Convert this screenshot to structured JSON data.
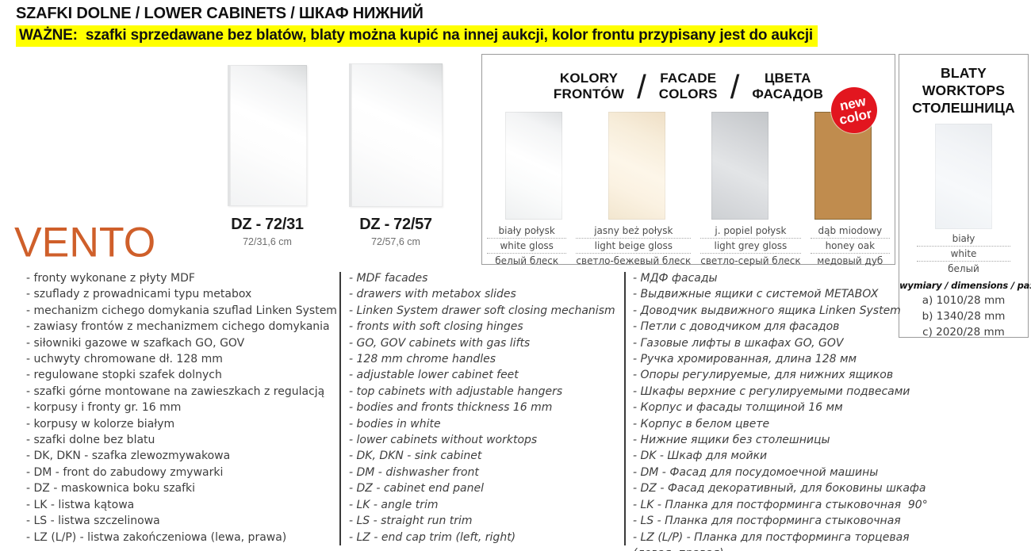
{
  "header": {
    "title": "SZAFKI DOLNE / LOWER CABINETS / ШКАФ НИЖНИЙ",
    "note": "WAŻNE:  szafki sprzedawane bez blatów, blaty można kupić na innej aukcji, kolor frontu przypisany jest do aukcji",
    "highlight_color": "#ffff00"
  },
  "brand": {
    "logo": "VENTO",
    "logo_color": "#cf5f2a"
  },
  "products": [
    {
      "code": "DZ - 72/31",
      "size": "72/31,6 cm"
    },
    {
      "code": "DZ - 72/57",
      "size": "72/57,6 cm"
    }
  ],
  "facade_panel": {
    "title_pl": "KOLORY\nFRONTÓW",
    "title_en": "FACADE\nCOLORS",
    "title_ru": "ЦВЕТА\nФАСАДОВ",
    "slash": "/",
    "badge": {
      "line1": "new",
      "line2": "color",
      "color": "#e2161f"
    },
    "swatches": [
      {
        "name_pl": "biały połysk",
        "name_en": "white gloss",
        "name_ru": "белый блеск",
        "color": "#f7f8f9"
      },
      {
        "name_pl": "jasny beż połysk",
        "name_en": "light beige gloss",
        "name_ru": "светло-бежевый блеск",
        "color": "#f6ecdb"
      },
      {
        "name_pl": "j. popiel połysk",
        "name_en": "light grey gloss",
        "name_ru": "светло-серый блеск",
        "color": "#d3d5d8"
      },
      {
        "name_pl": "dąb miodowy",
        "name_en": "honey oak",
        "name_ru": "медовый дуб",
        "color": "#c08c4e"
      }
    ]
  },
  "worktops_panel": {
    "title": "BLATY\nWORKTOPS\nСТОЛЕШНИЦА",
    "swatch_color": "#f2f4f7",
    "color_pl": "biały",
    "color_en": "white",
    "color_ru": "белый",
    "dims_label": "wymiary / dimensions / размеры",
    "dims": [
      "a) 1010/28 mm",
      "b) 1340/28 mm",
      "c) 2020/28 mm"
    ]
  },
  "features": {
    "pl": [
      "- fronty wykonane z płyty MDF",
      "- szuflady z prowadnicami typu metabox",
      "- mechanizm cichego domykania szuflad Linken System",
      "- zawiasy frontów z mechanizmem cichego domykania",
      "- siłowniki gazowe w szafkach GO, GOV",
      "- uchwyty chromowane dł. 128 mm",
      "- regulowane stopki szafek dolnych",
      "- szafki górne montowane na zawieszkach z regulacją",
      "- korpusy i fronty gr. 16 mm",
      "- korpusy w kolorze białym",
      "- szafki dolne bez blatu",
      "- DK, DKN - szafka zlewozmywakowa",
      "- DM - front do zabudowy zmywarki",
      "- DZ - maskownica boku szafki",
      "- LK - listwa kątowa",
      "- LS - listwa szczelinowa",
      "- LZ (L/P) - listwa zakończeniowa (lewa, prawa)"
    ],
    "en": [
      "- MDF facades",
      "- drawers with metabox slides",
      "- Linken System drawer soft closing mechanism",
      "- fronts with soft closing hinges",
      "- GO, GOV cabinets with gas lifts",
      "- 128 mm chrome handles",
      "- adjustable lower cabinet feet",
      "- top cabinets with adjustable hangers",
      "- bodies and fronts thickness 16 mm",
      "- bodies in white",
      "- lower cabinets without worktops",
      "- DK, DKN - sink cabinet",
      "- DM - dishwasher front",
      "- DZ - cabinet end panel",
      "- LK - angle trim",
      "- LS - straight run trim",
      "- LZ - end cap trim (left, right)"
    ],
    "ru": [
      "- МДФ фасады",
      "- Выдвижные ящики с системой METABOX",
      "- Доводчик выдвижного ящика Linken System",
      "- Петли с доводчиком для фасадов",
      "- Газовые лифты в шкафах GO, GOV",
      "- Ручка хромированная, длина 128 мм",
      "- Опоры регулируемые, для нижних ящиков",
      "- Шкафы верхние с регулируемыми подвесами",
      "- Корпус и фасады толщиной 16 мм",
      "- Корпус в белом цвете",
      "- Нижние ящики без столешницы",
      "- DK - Шкаф для мойки",
      "- DM - Фасад для посудомоечной машины",
      "- DZ - Фасад декоративный, для боковины шкафа",
      "- LK - Планка для постформинга стыковочная  90°",
      "- LS - Планка для постформинга стыковочная",
      "- LZ (L/P) - Планка для постформинга торцевая (левая, правая)"
    ]
  }
}
